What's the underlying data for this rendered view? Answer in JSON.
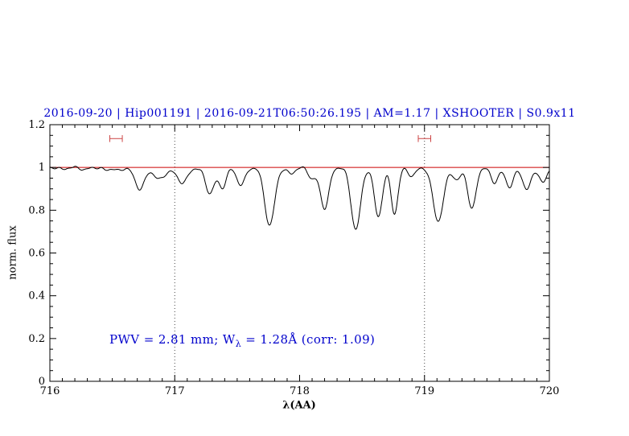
{
  "title": "2016-09-20 | Hip001191 | 2016-09-21T06:50:26.195 | AM=1.17 | XSHOOTER | S0.9x11",
  "annotation": {
    "part1": "PWV = 2.81 mm; W",
    "sub": "λ",
    "part2": " = 1.28Å (corr: 1.09)"
  },
  "axes": {
    "xlabel": "λ(AA)",
    "ylabel": "norm. flux"
  },
  "colors": {
    "title": "#0000cc",
    "annotation": "#0000cc",
    "continuum": "#cc0000",
    "marker": "#cc4444",
    "spectrum": "#000000",
    "guide": "#444444",
    "frame": "#000000"
  },
  "chart_data": {
    "type": "line",
    "title": "2016-09-20 | Hip001191 | 2016-09-21T06:50:26.195 | AM=1.17 | XSHOOTER | S0.9x11",
    "xlabel": "λ(AA)",
    "ylabel": "norm. flux",
    "xlim": [
      716,
      720
    ],
    "ylim": [
      0,
      1.2
    ],
    "xticks": [
      716,
      717,
      718,
      719,
      720
    ],
    "xtick_labels": [
      "716",
      "717",
      "718",
      "719",
      "720"
    ],
    "yticks": [
      0,
      0.2,
      0.4,
      0.6,
      0.8,
      1,
      1.2
    ],
    "ytick_labels": [
      "0",
      "0.2",
      "0.4",
      "0.6",
      "0.8",
      "1",
      "1.2"
    ],
    "xtick_minor_step": 0.1,
    "ytick_minor_step": 0.05,
    "guide_lines_x": [
      717,
      719
    ],
    "continuum_level": 1.0,
    "sample_step": 0.004,
    "noise": {
      "amp1": 0.004,
      "freq1": 55,
      "amp2": 0.0025,
      "freq2": 93,
      "phase2": 2.0
    },
    "absorption_lines": [
      {
        "center": 716.1,
        "depth": 0.008,
        "sigma": 0.03
      },
      {
        "center": 716.28,
        "depth": 0.01,
        "sigma": 0.03
      },
      {
        "center": 716.45,
        "depth": 0.012,
        "sigma": 0.03
      },
      {
        "center": 716.55,
        "depth": 0.015,
        "sigma": 0.03
      },
      {
        "center": 716.72,
        "depth": 0.1,
        "sigma": 0.04
      },
      {
        "center": 716.88,
        "depth": 0.055,
        "sigma": 0.045
      },
      {
        "center": 717.06,
        "depth": 0.07,
        "sigma": 0.045
      },
      {
        "center": 717.28,
        "depth": 0.12,
        "sigma": 0.035
      },
      {
        "center": 717.38,
        "depth": 0.095,
        "sigma": 0.03
      },
      {
        "center": 717.53,
        "depth": 0.08,
        "sigma": 0.035
      },
      {
        "center": 717.76,
        "depth": 0.27,
        "sigma": 0.04
      },
      {
        "center": 717.93,
        "depth": 0.03,
        "sigma": 0.03
      },
      {
        "center": 718.1,
        "depth": 0.05,
        "sigma": 0.03
      },
      {
        "center": 718.2,
        "depth": 0.19,
        "sigma": 0.035
      },
      {
        "center": 718.45,
        "depth": 0.29,
        "sigma": 0.038
      },
      {
        "center": 718.63,
        "depth": 0.23,
        "sigma": 0.032
      },
      {
        "center": 718.76,
        "depth": 0.215,
        "sigma": 0.028
      },
      {
        "center": 718.9,
        "depth": 0.04,
        "sigma": 0.03
      },
      {
        "center": 719.11,
        "depth": 0.25,
        "sigma": 0.042
      },
      {
        "center": 719.26,
        "depth": 0.06,
        "sigma": 0.03
      },
      {
        "center": 719.38,
        "depth": 0.195,
        "sigma": 0.032
      },
      {
        "center": 719.56,
        "depth": 0.07,
        "sigma": 0.03
      },
      {
        "center": 719.68,
        "depth": 0.09,
        "sigma": 0.032
      },
      {
        "center": 719.82,
        "depth": 0.1,
        "sigma": 0.035
      },
      {
        "center": 719.95,
        "depth": 0.07,
        "sigma": 0.03
      }
    ],
    "range_markers": [
      {
        "x": 716.53,
        "y": 1.135,
        "half_width": 0.05,
        "cap_half_height": 0.016
      },
      {
        "x": 719.0,
        "y": 1.135,
        "half_width": 0.05,
        "cap_half_height": 0.016
      }
    ],
    "measurements": {
      "pwv_mm": 2.81,
      "w_lambda_aa": 1.28,
      "corr": 1.09
    }
  }
}
